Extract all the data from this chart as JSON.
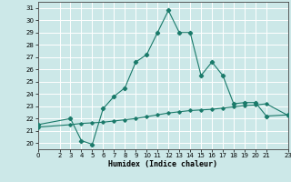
{
  "xlabel": "Humidex (Indice chaleur)",
  "xlim": [
    0,
    23
  ],
  "ylim": [
    19.5,
    31.5
  ],
  "yticks": [
    20,
    21,
    22,
    23,
    24,
    25,
    26,
    27,
    28,
    29,
    30,
    31
  ],
  "xticks": [
    0,
    2,
    3,
    4,
    5,
    6,
    7,
    8,
    9,
    10,
    11,
    12,
    13,
    14,
    15,
    16,
    17,
    18,
    19,
    20,
    21,
    23
  ],
  "bg_color": "#cce8e8",
  "line_color": "#1a7a6a",
  "grid_color": "#ffffff",
  "series1_x": [
    0,
    3,
    4,
    5,
    6,
    7,
    8,
    9,
    10,
    11,
    12,
    13,
    14,
    15,
    16,
    17,
    18,
    19,
    20,
    21,
    23
  ],
  "series1_y": [
    21.5,
    22.0,
    20.2,
    19.9,
    22.8,
    23.8,
    24.5,
    26.6,
    27.2,
    29.0,
    30.8,
    29.0,
    29.0,
    25.5,
    26.6,
    25.5,
    23.2,
    23.3,
    23.3,
    22.2,
    22.3
  ],
  "series2_x": [
    0,
    3,
    4,
    5,
    6,
    7,
    8,
    9,
    10,
    11,
    12,
    13,
    14,
    15,
    16,
    17,
    18,
    19,
    20,
    21,
    23
  ],
  "series2_y": [
    21.3,
    21.5,
    21.6,
    21.65,
    21.7,
    21.8,
    21.9,
    22.0,
    22.15,
    22.3,
    22.45,
    22.55,
    22.65,
    22.7,
    22.75,
    22.85,
    22.95,
    23.05,
    23.1,
    23.2,
    22.25
  ]
}
